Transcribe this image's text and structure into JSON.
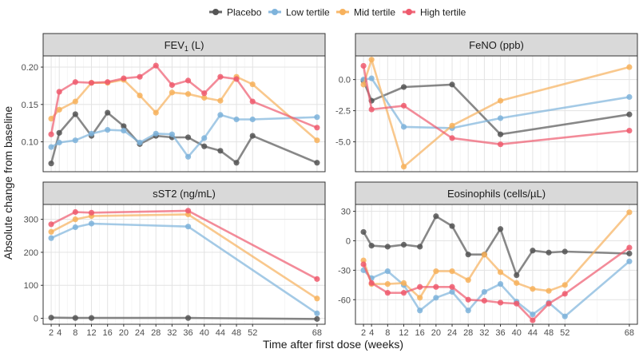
{
  "figure": {
    "ylabel": "Absolute change from baseline",
    "xlabel": "Time after first dose (weeks)"
  },
  "legend": {
    "items": [
      {
        "label": "Placebo",
        "color": "#555555"
      },
      {
        "label": "Low tertile",
        "color": "#7eb3db"
      },
      {
        "label": "Mid tertile",
        "color": "#f7b15c"
      },
      {
        "label": "High tertile",
        "color": "#ee5a6d"
      }
    ]
  },
  "chart_data": [
    {
      "type": "line",
      "title": "FEV₁ (L)",
      "title_main": "FEV",
      "title_sub": "1",
      "title_rest": " (L)",
      "xlabel": "Time after first dose (weeks)",
      "ylabel": "Absolute change from baseline",
      "xlim": [
        0,
        70
      ],
      "ylim": [
        0.06,
        0.215
      ],
      "xticks": [
        2,
        4,
        8,
        12,
        16,
        20,
        24,
        28,
        32,
        36,
        40,
        44,
        48,
        52,
        68
      ],
      "yticks": [
        0.1,
        0.15,
        0.2
      ],
      "ytick_labels": [
        "0.10",
        "0.15",
        "0.20"
      ],
      "series": [
        {
          "name": "Placebo",
          "x": [
            2,
            4,
            8,
            12,
            16,
            20,
            24,
            28,
            32,
            36,
            40,
            44,
            48,
            52,
            68
          ],
          "y": [
            0.071,
            0.112,
            0.137,
            0.108,
            0.139,
            0.121,
            0.097,
            0.108,
            0.106,
            0.106,
            0.094,
            0.088,
            0.072,
            0.108,
            0.072
          ]
        },
        {
          "name": "Low tertile",
          "x": [
            2,
            4,
            8,
            12,
            16,
            20,
            24,
            28,
            32,
            36,
            40,
            44,
            48,
            52,
            68
          ],
          "y": [
            0.093,
            0.099,
            0.102,
            0.111,
            0.116,
            0.115,
            0.099,
            0.111,
            0.11,
            0.08,
            0.105,
            0.136,
            0.13,
            0.13,
            0.133
          ]
        },
        {
          "name": "Mid tertile",
          "x": [
            2,
            4,
            8,
            12,
            16,
            20,
            24,
            28,
            32,
            36,
            40,
            44,
            48,
            52,
            68
          ],
          "y": [
            0.131,
            0.143,
            0.154,
            0.179,
            0.179,
            0.183,
            0.162,
            0.139,
            0.166,
            0.164,
            0.159,
            0.155,
            0.187,
            0.177,
            0.102
          ]
        },
        {
          "name": "High tertile",
          "x": [
            2,
            4,
            8,
            12,
            16,
            20,
            24,
            28,
            32,
            36,
            40,
            44,
            48,
            52,
            68
          ],
          "y": [
            0.11,
            0.167,
            0.18,
            0.179,
            0.18,
            0.185,
            0.187,
            0.202,
            0.176,
            0.182,
            0.165,
            0.187,
            0.184,
            0.154,
            0.119
          ]
        }
      ]
    },
    {
      "type": "line",
      "title": "FeNO (ppb)",
      "title_main": "FeNO (ppb)",
      "title_sub": "",
      "title_rest": "",
      "xlabel": "Time after first dose (weeks)",
      "ylabel": "Absolute change from baseline",
      "xlim": [
        0,
        70
      ],
      "ylim": [
        -7.4,
        1.9
      ],
      "xticks": [
        2,
        4,
        8,
        12,
        16,
        20,
        24,
        28,
        32,
        36,
        40,
        44,
        48,
        52,
        68
      ],
      "yticks": [
        0.0,
        -2.5,
        -5.0
      ],
      "ytick_labels": [
        "0.0",
        "-2.5",
        "-5.0"
      ],
      "series": [
        {
          "name": "Placebo",
          "x": [
            2,
            4,
            12,
            24,
            36,
            68
          ],
          "y": [
            -0.1,
            -1.7,
            -0.6,
            -0.4,
            -4.4,
            -2.8
          ]
        },
        {
          "name": "Low tertile",
          "x": [
            2,
            4,
            12,
            24,
            36,
            68
          ],
          "y": [
            0.0,
            0.1,
            -3.8,
            -3.9,
            -3.1,
            -1.4
          ]
        },
        {
          "name": "Mid tertile",
          "x": [
            2,
            4,
            12,
            24,
            36,
            68
          ],
          "y": [
            -0.4,
            1.6,
            -7.0,
            -3.7,
            -1.7,
            1.0
          ]
        },
        {
          "name": "High tertile",
          "x": [
            2,
            4,
            12,
            24,
            36,
            68
          ],
          "y": [
            1.1,
            -2.4,
            -2.1,
            -4.7,
            -5.2,
            -4.1
          ]
        }
      ]
    },
    {
      "type": "line",
      "title": "sST2 (ng/mL)",
      "title_main": "sST2 (ng/mL)",
      "title_sub": "",
      "title_rest": "",
      "xlabel": "Time after first dose (weeks)",
      "ylabel": "Absolute change from baseline",
      "xlim": [
        0,
        70
      ],
      "ylim": [
        -18,
        345
      ],
      "xticks": [
        2,
        4,
        8,
        12,
        16,
        20,
        24,
        28,
        32,
        36,
        40,
        44,
        48,
        52,
        68
      ],
      "yticks": [
        0,
        100,
        200,
        300
      ],
      "ytick_labels": [
        "0",
        "100",
        "200",
        "300"
      ],
      "series": [
        {
          "name": "Placebo",
          "x": [
            2,
            8,
            12,
            36,
            68
          ],
          "y": [
            2,
            1,
            1,
            1,
            -2
          ]
        },
        {
          "name": "Low tertile",
          "x": [
            2,
            8,
            12,
            36,
            68
          ],
          "y": [
            243,
            276,
            287,
            278,
            15
          ]
        },
        {
          "name": "Mid tertile",
          "x": [
            2,
            8,
            12,
            36,
            68
          ],
          "y": [
            262,
            300,
            310,
            315,
            60
          ]
        },
        {
          "name": "High tertile",
          "x": [
            2,
            8,
            12,
            36,
            68
          ],
          "y": [
            285,
            322,
            320,
            326,
            119
          ]
        }
      ]
    },
    {
      "type": "line",
      "title": "Eosinophils (cells/µL)",
      "title_main": "Eosinophils (cells/µL)",
      "title_sub": "",
      "title_rest": "",
      "xlabel": "Time after first dose (weeks)",
      "ylabel": "Absolute change from baseline",
      "xlim": [
        0,
        70
      ],
      "ylim": [
        -85,
        37
      ],
      "xticks": [
        2,
        4,
        8,
        12,
        16,
        20,
        24,
        28,
        32,
        36,
        40,
        44,
        48,
        52,
        68
      ],
      "yticks": [
        30,
        0,
        -30,
        -60
      ],
      "ytick_labels": [
        "30",
        "0",
        "-30",
        "-60"
      ],
      "series": [
        {
          "name": "Placebo",
          "x": [
            2,
            4,
            8,
            12,
            16,
            20,
            24,
            28,
            32,
            36,
            40,
            44,
            48,
            52,
            68
          ],
          "y": [
            9,
            -5,
            -6,
            -4,
            -6,
            25,
            15,
            -14,
            -14,
            12,
            -35,
            -10,
            -12,
            -11,
            -13
          ]
        },
        {
          "name": "Low tertile",
          "x": [
            2,
            4,
            8,
            12,
            16,
            20,
            24,
            28,
            32,
            36,
            40,
            44,
            48,
            52,
            68
          ],
          "y": [
            -30,
            -38,
            -31,
            -45,
            -71,
            -58,
            -52,
            -71,
            -52,
            -44,
            -62,
            -75,
            -63,
            -77,
            -21
          ]
        },
        {
          "name": "Mid tertile",
          "x": [
            2,
            4,
            8,
            12,
            16,
            20,
            24,
            28,
            32,
            36,
            40,
            44,
            48,
            52,
            68
          ],
          "y": [
            -20,
            -44,
            -44,
            -43,
            -58,
            -31,
            -31,
            -40,
            -14,
            -32,
            -43,
            -49,
            -51,
            -45,
            29
          ]
        },
        {
          "name": "High tertile",
          "x": [
            2,
            4,
            8,
            12,
            16,
            20,
            24,
            28,
            32,
            36,
            40,
            44,
            48,
            52,
            68
          ],
          "y": [
            -24,
            -43,
            -53,
            -53,
            -47,
            -47,
            -47,
            -60,
            -61,
            -63,
            -64,
            -81,
            -64,
            -54,
            -7
          ]
        }
      ]
    }
  ]
}
